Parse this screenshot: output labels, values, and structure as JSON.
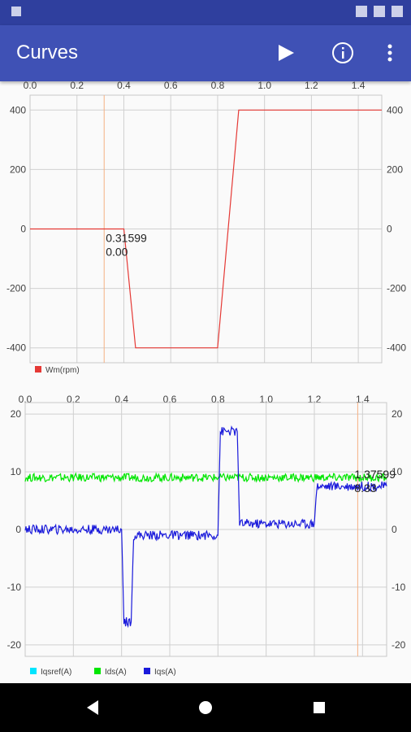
{
  "app": {
    "title": "Curves"
  },
  "toolbar": {
    "play_icon": "play-icon",
    "info_icon": "info-icon",
    "more_icon": "more-vert-icon"
  },
  "chart_data": [
    {
      "type": "line",
      "x_ticks": [
        "0.0",
        "0.2",
        "0.4",
        "0.6",
        "0.8",
        "1.0",
        "1.2",
        "1.4"
      ],
      "y_ticks": [
        "400",
        "200",
        "0",
        "-200",
        "-400"
      ],
      "xlim": [
        0,
        1.5
      ],
      "ylim": [
        -450,
        450
      ],
      "grid": true,
      "legend_position": "bottom-left",
      "cursor": {
        "x": 0.31599,
        "label_x": "0.31599",
        "label_y": "0.00"
      },
      "series": [
        {
          "name": "Wm(rpm)",
          "color": "#e53935",
          "x": [
            0.0,
            0.4,
            0.45,
            0.8,
            0.89,
            1.5
          ],
          "y": [
            0,
            0,
            -400,
            -400,
            400,
            400
          ]
        }
      ]
    },
    {
      "type": "line",
      "x_ticks": [
        "0.0",
        "0.2",
        "0.4",
        "0.6",
        "0.8",
        "1.0",
        "1.2",
        "1.4"
      ],
      "y_ticks": [
        "20",
        "10",
        "0",
        "-10",
        "-20"
      ],
      "xlim": [
        0,
        1.5
      ],
      "ylim": [
        -22,
        22
      ],
      "grid": true,
      "legend_position": "bottom-left",
      "cursor": {
        "x": 1.38,
        "label_x": "1.37599",
        "label_y": "8.33"
      },
      "series": [
        {
          "name": "Iqsref(A)",
          "color": "#00e5ff",
          "x": [],
          "y": []
        },
        {
          "name": "Ids(A)",
          "color": "#00e600",
          "x": [
            0.0,
            1.5
          ],
          "y": [
            9,
            9
          ]
        },
        {
          "name": "Iqs(A)",
          "color": "#1a1adb",
          "x": [
            0.0,
            0.4,
            0.41,
            0.44,
            0.45,
            0.8,
            0.81,
            0.88,
            0.89,
            1.2,
            1.21,
            1.5
          ],
          "y": [
            0,
            0,
            -16,
            -16,
            -1,
            -1,
            17,
            17,
            1,
            1,
            7.5,
            7.5
          ]
        }
      ]
    }
  ],
  "colors": {
    "appbar": "#3f51b5",
    "statusbar": "#2f3f9e",
    "grid": "#d0d0d0",
    "cursor": "#f5b183"
  },
  "navbar": {
    "back_icon": "back-icon",
    "home_icon": "home-icon",
    "recents_icon": "recents-icon"
  }
}
